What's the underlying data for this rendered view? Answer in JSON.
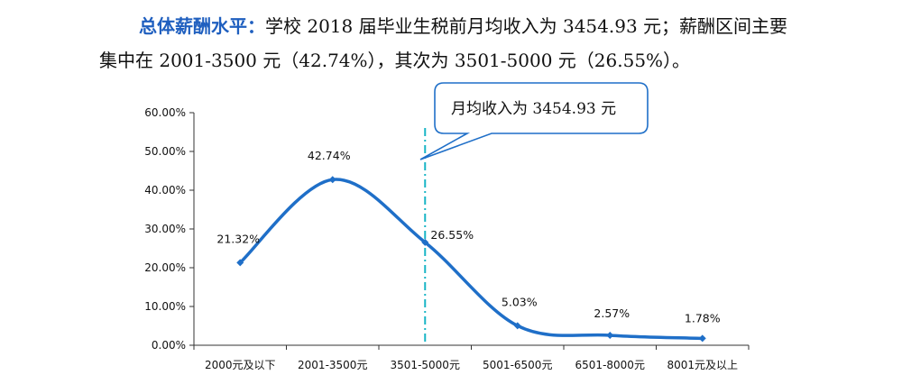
{
  "text": {
    "heading": "总体薪酬水平：",
    "line1_rest": "学校 2018 届毕业生税前月均收入为 3454.93 元；薪酬区间主要",
    "line2": "集中在 2001-3500 元（42.74%），其次为 3501-5000 元（26.55%）。"
  },
  "colors": {
    "line": "#1f6fc8",
    "accent_heading": "#1f5fbf",
    "callout_border": "#1f6fc8",
    "marker_line": "#19b5c6"
  },
  "chart_data": {
    "type": "line",
    "categories": [
      "2000元及以下",
      "2001-3500元",
      "3501-5000元",
      "5001-6500元",
      "6501-8000元",
      "8001元及以上"
    ],
    "series": [
      {
        "values": [
          21.32,
          42.74,
          26.55,
          5.03,
          2.57,
          1.78
        ]
      }
    ],
    "data_labels": [
      "21.32%",
      "42.74%",
      "26.55%",
      "5.03%",
      "2.57%",
      "1.78%"
    ],
    "y_ticks": [
      "0.00%",
      "10.00%",
      "20.00%",
      "30.00%",
      "40.00%",
      "50.00%",
      "60.00%"
    ],
    "ylim": [
      0,
      60
    ],
    "grid": false,
    "smooth": true,
    "reference_line": {
      "category_position": 2.5,
      "style": "dash-dot"
    },
    "callout": "月均收入为 3454.93 元"
  }
}
